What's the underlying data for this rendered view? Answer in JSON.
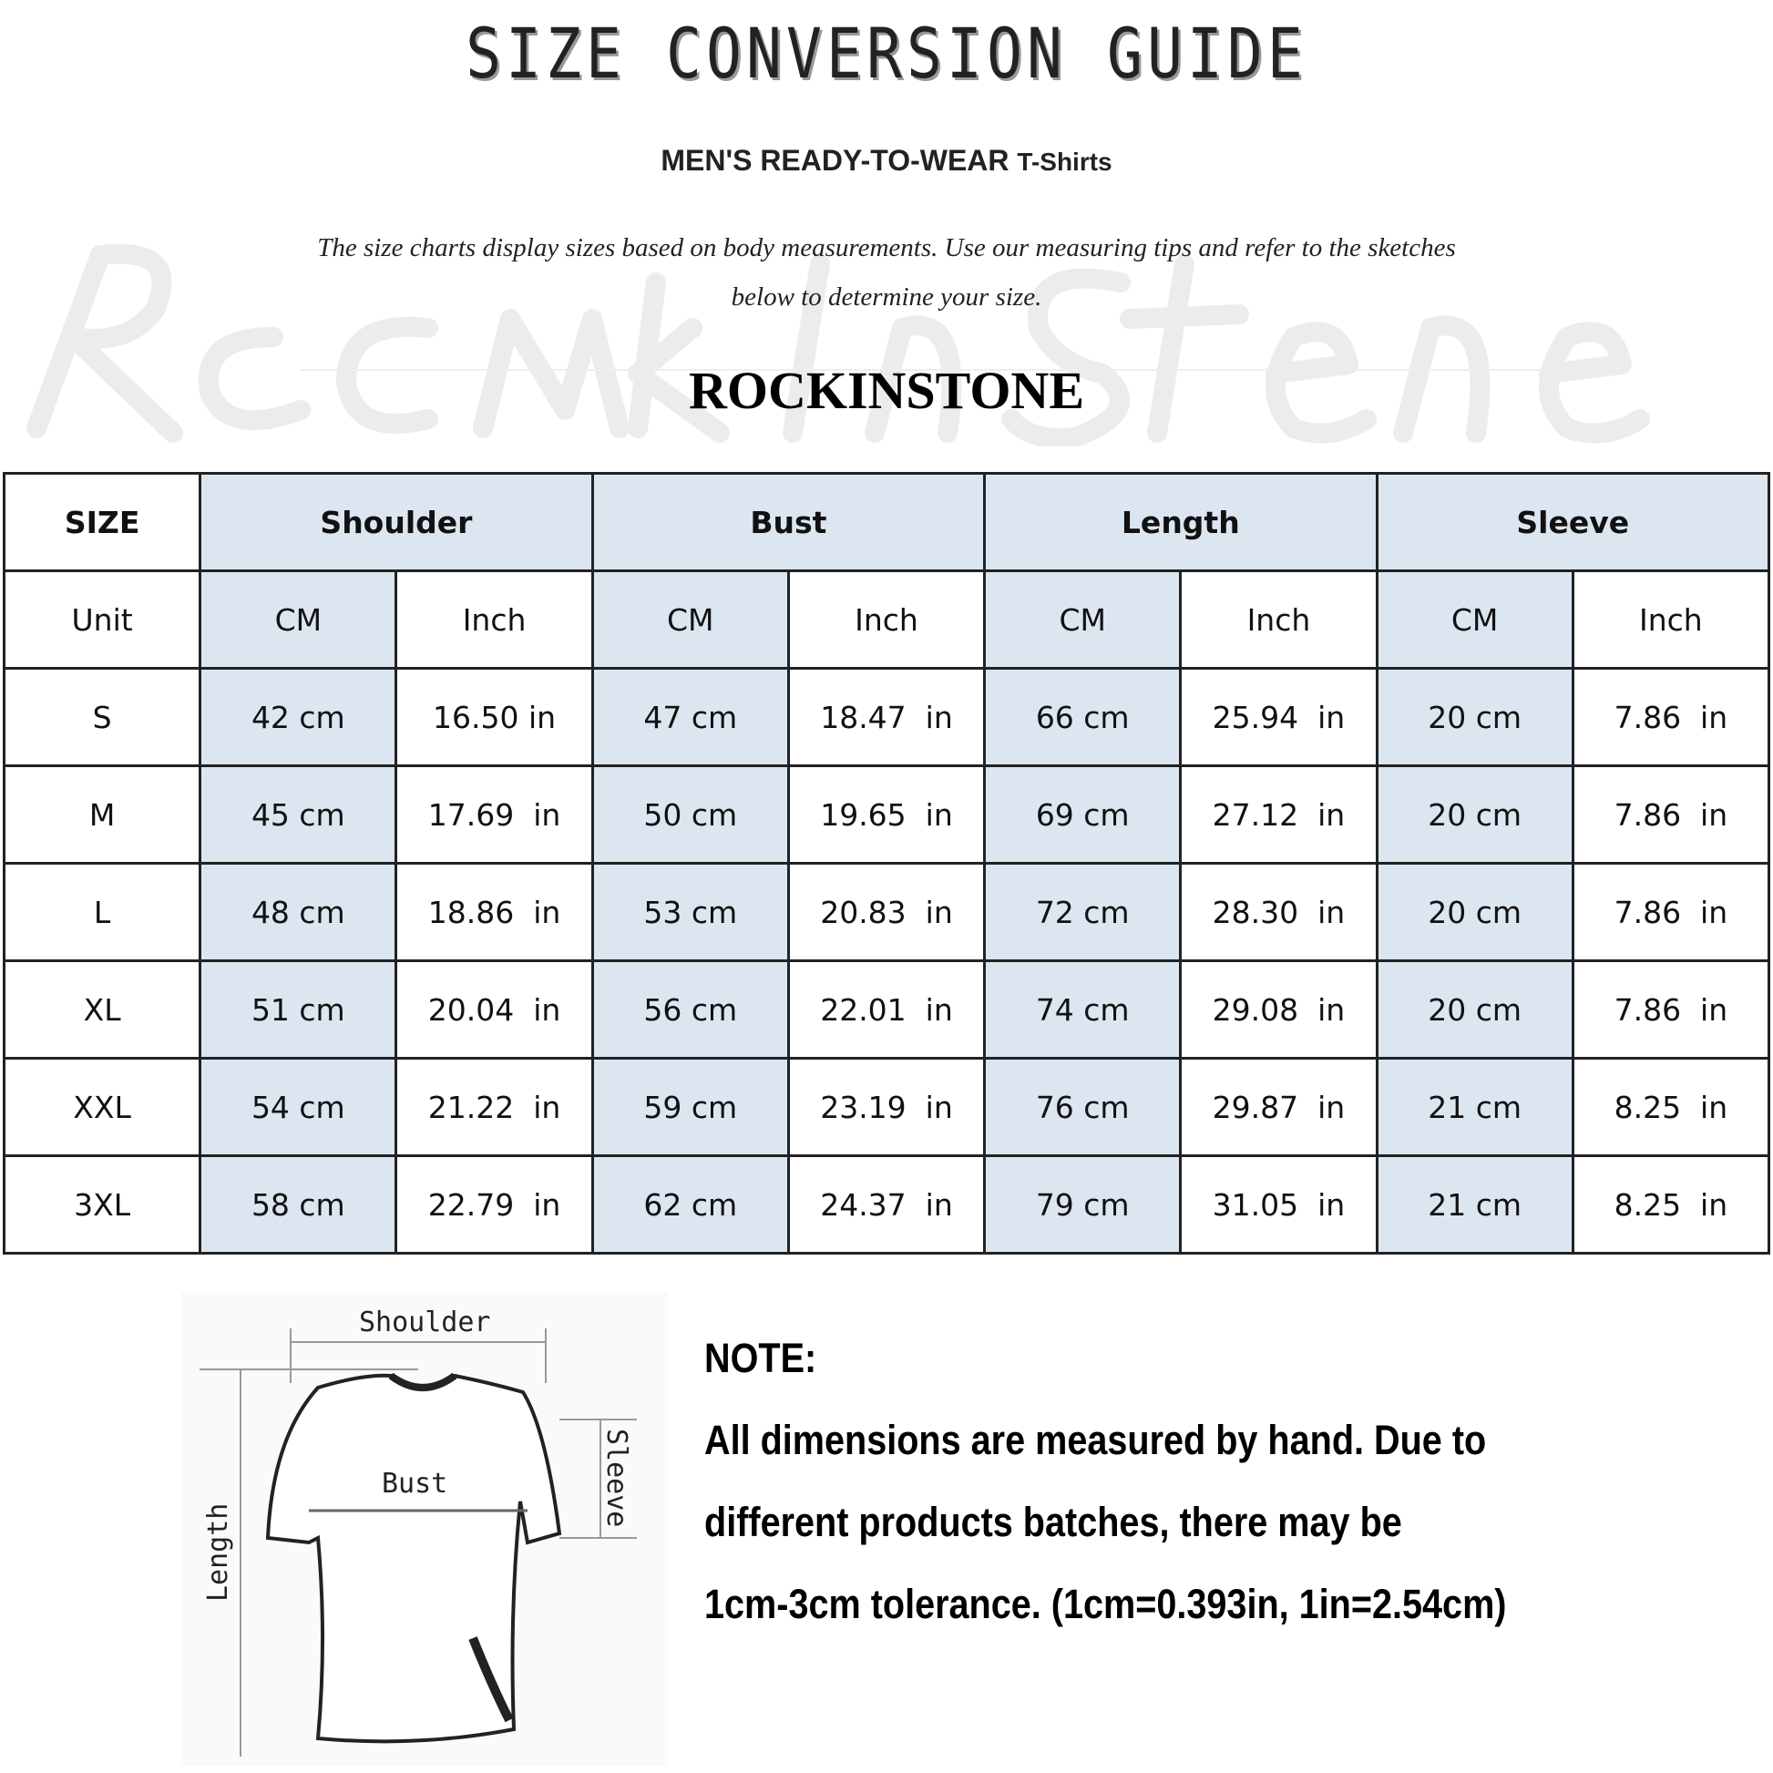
{
  "header": {
    "title": "SIZE CONVERSION GUIDE",
    "subtitle_main": "MEN'S READY-TO-WEAR",
    "subtitle_product": "T-Shirts",
    "description_line1": "The size charts display sizes based on body measurements. Use our measuring tips and refer to the sketches",
    "description_line2": "below to determine your size.",
    "brand": "ROCKINSTONE",
    "watermark": "Rock In Stone"
  },
  "table": {
    "size_label": "SIZE",
    "unit_label": "Unit",
    "groups": [
      "Shoulder",
      "Bust",
      "Length",
      "Sleeve"
    ],
    "units": [
      "CM",
      "Inch",
      "CM",
      "Inch",
      "CM",
      "Inch",
      "CM",
      "Inch"
    ],
    "rows": [
      {
        "size": "S",
        "values": [
          "42 cm",
          "16.50 in",
          "47 cm",
          "18.47  in",
          "66 cm",
          "25.94  in",
          "20 cm",
          "7.86  in"
        ]
      },
      {
        "size": "M",
        "values": [
          "45 cm",
          "17.69  in",
          "50 cm",
          "19.65  in",
          "69 cm",
          "27.12  in",
          "20 cm",
          "7.86  in"
        ]
      },
      {
        "size": "L",
        "values": [
          "48 cm",
          "18.86  in",
          "53 cm",
          "20.83  in",
          "72 cm",
          "28.30  in",
          "20 cm",
          "7.86  in"
        ]
      },
      {
        "size": "XL",
        "values": [
          "51 cm",
          "20.04  in",
          "56 cm",
          "22.01  in",
          "74 cm",
          "29.08  in",
          "20 cm",
          "7.86  in"
        ]
      },
      {
        "size": "XXL",
        "values": [
          "54 cm",
          "21.22  in",
          "59 cm",
          "23.19  in",
          "76 cm",
          "29.87  in",
          "21 cm",
          "8.25  in"
        ]
      },
      {
        "size": "3XL",
        "values": [
          "58 cm",
          "22.79  in",
          "62 cm",
          "24.37  in",
          "79 cm",
          "31.05  in",
          "21 cm",
          "8.25  in"
        ]
      }
    ],
    "colors": {
      "highlight": "#dce6f1",
      "border": "#222222"
    }
  },
  "sketch": {
    "shoulder": "Shoulder",
    "bust": "Bust",
    "length": "Length",
    "sleeve": "Sleeve"
  },
  "note": {
    "heading": "NOTE:",
    "line1": "All dimensions are measured by hand. Due to",
    "line2": "different products batches, there may be",
    "line3": "1cm-3cm tolerance. (1cm=0.393in, 1in=2.54cm)"
  }
}
